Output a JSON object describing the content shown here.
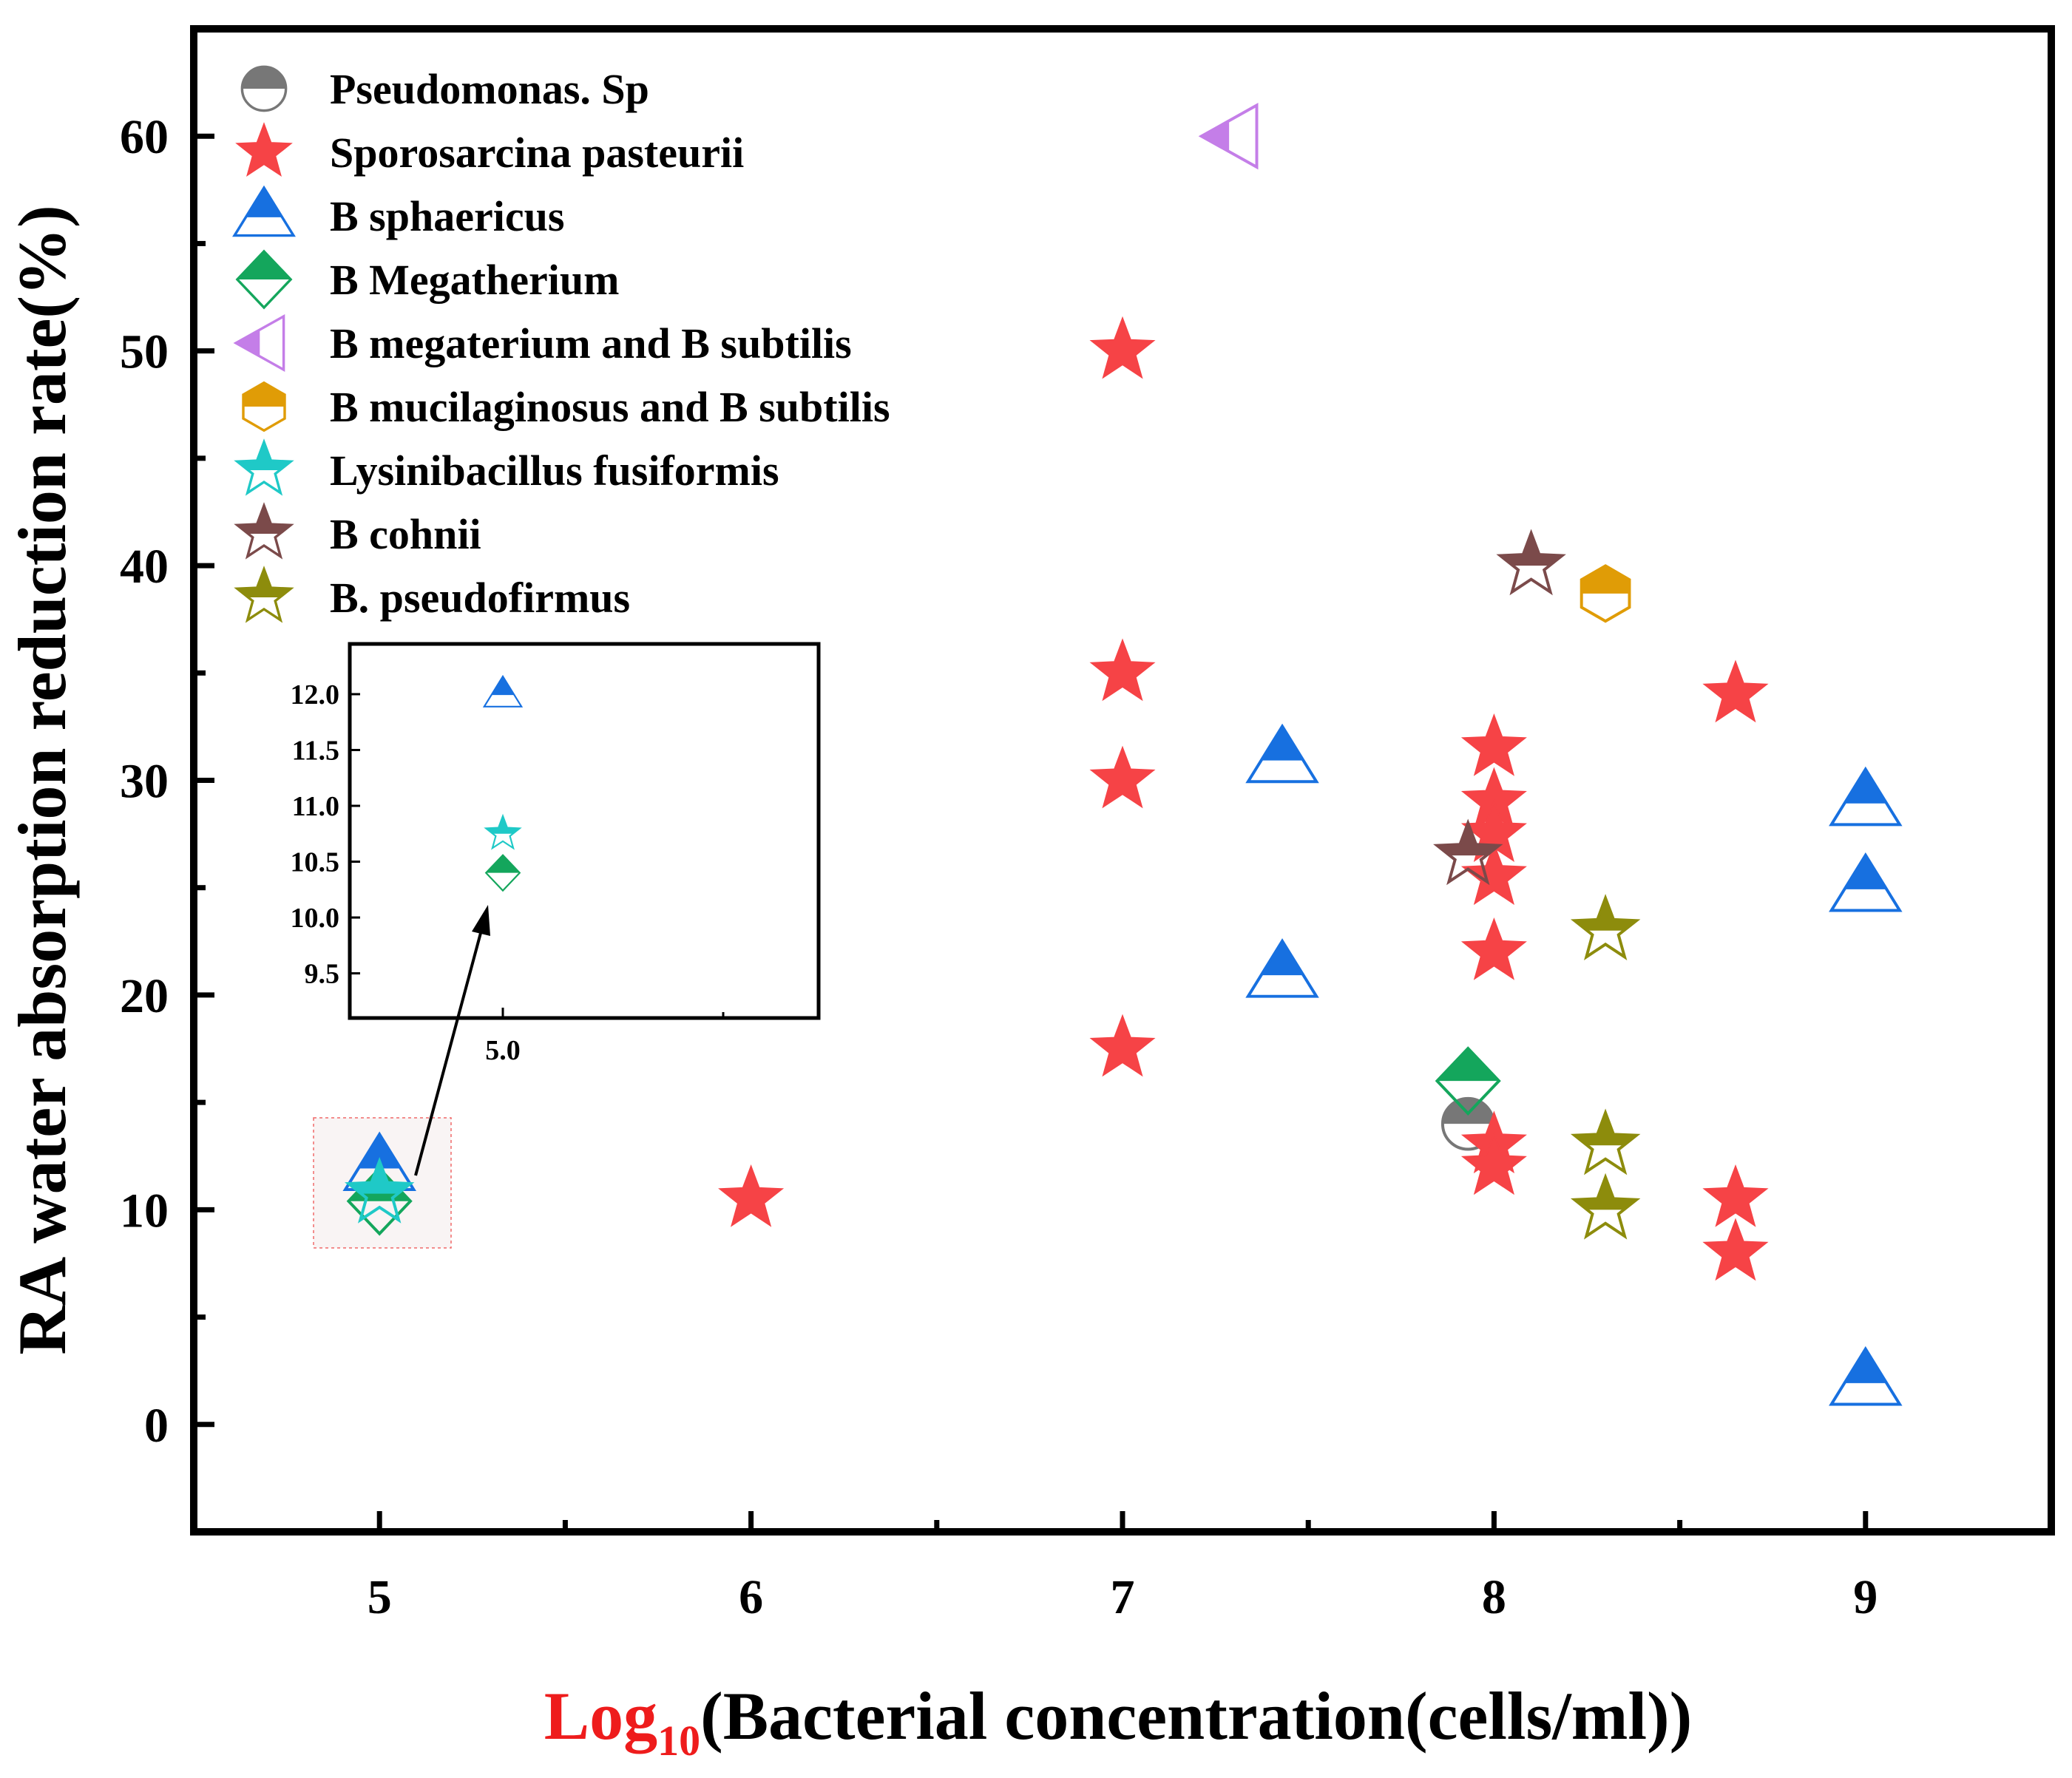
{
  "chart_data": {
    "type": "scatter",
    "xlabel_prefix": "Log",
    "xlabel_subscript": "10",
    "xlabel_rest": "(Bacterial concentration(cells/ml))",
    "ylabel": "RA water absorption reduction rate(%)",
    "xlim": [
      4.5,
      9.5
    ],
    "ylim": [
      -5,
      65
    ],
    "xticks": [
      5,
      6,
      7,
      8,
      9
    ],
    "yticks": [
      0,
      10,
      20,
      30,
      40,
      50,
      60
    ],
    "legend_position": "top-left",
    "series": [
      {
        "name": "Pseudomonas. Sp",
        "marker": "circle",
        "color": "#777777",
        "points": [
          [
            7.93,
            14
          ]
        ]
      },
      {
        "name": "Sporosarcina pasteurii",
        "marker": "star-solid",
        "color": "#f64346",
        "points": [
          [
            6,
            10.5
          ],
          [
            7,
            50
          ],
          [
            7,
            35
          ],
          [
            7,
            30
          ],
          [
            7,
            17.5
          ],
          [
            8,
            31.5
          ],
          [
            8,
            29
          ],
          [
            8,
            27.5
          ],
          [
            8,
            25.5
          ],
          [
            8,
            22
          ],
          [
            8,
            13
          ],
          [
            8,
            12
          ],
          [
            8.65,
            34
          ],
          [
            8.65,
            10.5
          ],
          [
            8.65,
            8
          ]
        ]
      },
      {
        "name": "B sphaericus",
        "marker": "triangle-up",
        "color": "#1770e0",
        "points": [
          [
            5,
            12
          ],
          [
            7.43,
            31
          ],
          [
            7.43,
            21
          ],
          [
            9,
            29
          ],
          [
            9,
            25
          ],
          [
            9,
            2
          ]
        ]
      },
      {
        "name": "B Megatherium",
        "marker": "diamond",
        "color": "#14a65c",
        "points": [
          [
            5,
            10.4
          ],
          [
            7.93,
            16
          ]
        ]
      },
      {
        "name": "B megaterium and B subtilis",
        "marker": "triangle-left",
        "color": "#c47ee8",
        "points": [
          [
            7.3,
            60
          ]
        ]
      },
      {
        "name": "B mucilaginosus and B subtilis",
        "marker": "hexagon",
        "color": "#e09c06",
        "points": [
          [
            8.3,
            38.7
          ]
        ]
      },
      {
        "name": "Lysinibacillus fusiformis",
        "marker": "star-half",
        "color": "#1fc9c7",
        "points": [
          [
            5,
            10.75
          ]
        ]
      },
      {
        "name": "B cohnii",
        "marker": "star-half",
        "color": "#7b4a4a",
        "points": [
          [
            8.1,
            40
          ],
          [
            7.93,
            26.5
          ]
        ]
      },
      {
        "name": "B. pseudofirmus",
        "marker": "star-half",
        "color": "#8d8c0c",
        "points": [
          [
            8.3,
            23
          ],
          [
            8.3,
            13
          ],
          [
            8.3,
            10
          ]
        ]
      }
    ],
    "inset": {
      "xticks": [
        5.0
      ],
      "yticks": [
        "9.5",
        "10.0",
        "10.5",
        "11.0",
        "11.5",
        "12.0"
      ],
      "ylim": [
        9.1,
        12.45
      ],
      "points": [
        {
          "series": "B sphaericus",
          "x": 5.0,
          "y": 12.0
        },
        {
          "series": "Lysinibacillus fusiformis",
          "x": 5.0,
          "y": 10.75
        },
        {
          "series": "B Megatherium",
          "x": 5.0,
          "y": 10.4
        }
      ]
    }
  }
}
